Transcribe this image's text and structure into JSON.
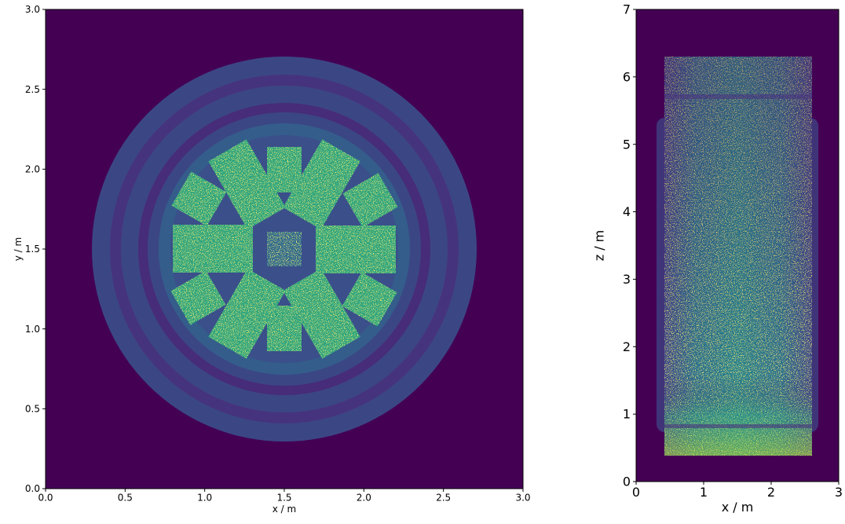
{
  "chart_data": [
    {
      "type": "heatmap",
      "xlabel": "x / m",
      "ylabel": "y / m",
      "xlim": [
        0,
        3
      ],
      "ylim": [
        0,
        3
      ],
      "xticks": [
        {
          "value": 0,
          "label": "0.0"
        },
        0.5,
        {
          "value": 1,
          "label": "1.0"
        },
        1.5,
        {
          "value": 2,
          "label": "2.0"
        },
        2.5,
        {
          "value": 3,
          "label": "3.0"
        }
      ],
      "yticks": [
        {
          "value": 0,
          "label": "0.0"
        },
        0.5,
        {
          "value": 1,
          "label": "1.0"
        },
        1.5,
        {
          "value": 2,
          "label": "2.0"
        },
        2.5,
        {
          "value": 3,
          "label": "3.0"
        }
      ]
    },
    {
      "type": "heatmap",
      "xlabel": "x / m",
      "ylabel": "z / m",
      "xlim": [
        0,
        3
      ],
      "ylim": [
        0,
        7
      ],
      "xticks": [
        0,
        1,
        2,
        3
      ],
      "yticks": [
        0,
        1,
        2,
        3,
        4,
        5,
        6,
        7
      ]
    }
  ]
}
